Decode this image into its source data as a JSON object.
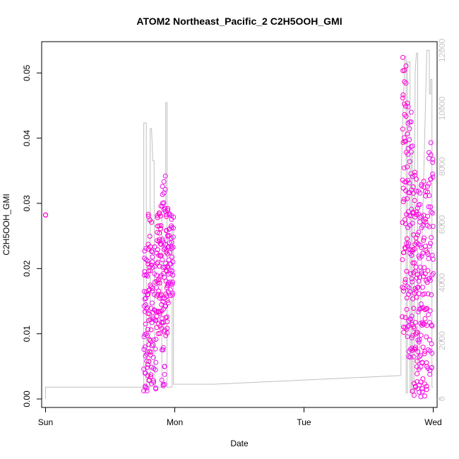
{
  "chart_data": {
    "type": "scatter",
    "title": "ATOM2 Northeast_Pacific_2 C2H5OOH_GMI",
    "xlabel": "Date",
    "ylabel": "C2H5OOH_GMI",
    "x_ticks": [
      {
        "pos": 0,
        "label": "Sun"
      },
      {
        "pos": 1,
        "label": "Mon"
      },
      {
        "pos": 2,
        "label": "Tue"
      },
      {
        "pos": 3,
        "label": "Wed"
      }
    ],
    "xlim": [
      -0.03,
      3.03
    ],
    "ylim": [
      -0.0013,
      0.0548
    ],
    "y_ticks": [
      0.0,
      0.01,
      0.02,
      0.03,
      0.04,
      0.05
    ],
    "y_tick_labels": [
      "0.00",
      "0.01",
      "0.02",
      "0.03",
      "0.04",
      "0.05"
    ],
    "y2lim": [
      -300,
      12300
    ],
    "y2_ticks": [
      0,
      2000,
      4000,
      6000,
      8000,
      10000,
      12000
    ],
    "y2_tick_labels": [
      "0",
      "2000",
      "4000",
      "6000",
      "8000",
      "10000",
      "12000"
    ],
    "colors": {
      "points_primary": "#ff00cc",
      "points_secondary": "#ee11ee",
      "altitude_line": "#c0c0c0",
      "axis": "#000000",
      "right_axis": "#c8c8c8"
    },
    "series": [
      {
        "role": "points",
        "segments": [
          {
            "x0": 0.0,
            "x1": 0.0,
            "y0": 0.0282,
            "y1": 0.0283,
            "n": 3
          },
          {
            "x0": 0.76,
            "x1": 0.79,
            "y0": 0.0007,
            "y1": 0.0232,
            "n": 40
          },
          {
            "x0": 0.79,
            "x1": 0.82,
            "y0": 0.001,
            "y1": 0.029,
            "n": 40
          },
          {
            "x0": 0.82,
            "x1": 0.86,
            "y0": 0.0015,
            "y1": 0.024,
            "n": 40
          },
          {
            "x0": 0.86,
            "x1": 0.9,
            "y0": 0.01,
            "y1": 0.0298,
            "n": 50
          },
          {
            "x0": 0.9,
            "x1": 0.93,
            "y0": 0.0005,
            "y1": 0.0345,
            "n": 45
          },
          {
            "x0": 0.93,
            "x1": 0.95,
            "y0": 0.009,
            "y1": 0.0295,
            "n": 30
          },
          {
            "x0": 0.95,
            "x1": 0.99,
            "y0": 0.0155,
            "y1": 0.0285,
            "n": 40
          },
          {
            "x0": 2.76,
            "x1": 2.8,
            "y0": 0.01,
            "y1": 0.0527,
            "n": 55
          },
          {
            "x0": 2.8,
            "x1": 2.84,
            "y0": 0.006,
            "y1": 0.045,
            "n": 55
          },
          {
            "x0": 2.84,
            "x1": 2.88,
            "y0": 0.0005,
            "y1": 0.035,
            "n": 55
          },
          {
            "x0": 2.88,
            "x1": 2.92,
            "y0": 0.0003,
            "y1": 0.033,
            "n": 55
          },
          {
            "x0": 2.92,
            "x1": 2.96,
            "y0": 0.0003,
            "y1": 0.034,
            "n": 45
          },
          {
            "x0": 2.96,
            "x1": 3.0,
            "y0": 0.001,
            "y1": 0.0398,
            "n": 45
          }
        ]
      },
      {
        "role": "altitude",
        "axis": "right",
        "points": [
          [
            0.0,
            0
          ],
          [
            0.0,
            400
          ],
          [
            0.7,
            400
          ],
          [
            0.76,
            400
          ],
          [
            0.76,
            9500
          ],
          [
            0.78,
            9500
          ],
          [
            0.78,
            400
          ],
          [
            0.81,
            400
          ],
          [
            0.81,
            9300
          ],
          [
            0.82,
            9300
          ],
          [
            0.83,
            8200
          ],
          [
            0.84,
            8200
          ],
          [
            0.845,
            400
          ],
          [
            0.9,
            400
          ],
          [
            0.9,
            6500
          ],
          [
            0.93,
            6500
          ],
          [
            0.93,
            10200
          ],
          [
            0.94,
            10200
          ],
          [
            0.94,
            400
          ],
          [
            0.98,
            400
          ],
          [
            0.98,
            6000
          ],
          [
            0.99,
            6000
          ],
          [
            0.99,
            500
          ],
          [
            1.0,
            500
          ],
          [
            1.3,
            500
          ],
          [
            2.75,
            800
          ],
          [
            2.75,
            7500
          ],
          [
            2.78,
            11800
          ],
          [
            2.79,
            11800
          ],
          [
            2.79,
            200
          ],
          [
            2.8,
            200
          ],
          [
            2.8,
            11600
          ],
          [
            2.82,
            11600
          ],
          [
            2.82,
            200
          ],
          [
            2.83,
            200
          ],
          [
            2.83,
            8500
          ],
          [
            2.84,
            8500
          ],
          [
            2.84,
            200
          ],
          [
            2.85,
            200
          ],
          [
            2.86,
            11200
          ],
          [
            2.87,
            11900
          ],
          [
            2.88,
            11900
          ],
          [
            2.88,
            1000
          ],
          [
            2.89,
            1000
          ],
          [
            2.95,
            12000
          ],
          [
            2.97,
            12000
          ],
          [
            2.97,
            10500
          ],
          [
            2.98,
            10500
          ],
          [
            2.98,
            11000
          ],
          [
            2.99,
            11000
          ],
          [
            2.99,
            400
          ],
          [
            3.0,
            400
          ]
        ]
      }
    ]
  }
}
